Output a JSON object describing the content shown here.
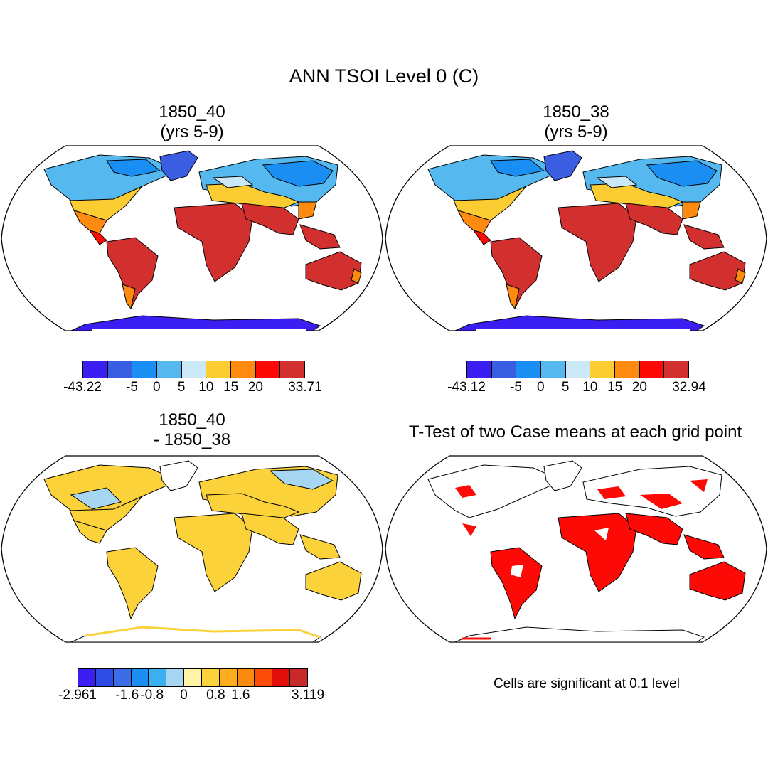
{
  "title": "ANN TSOI Level 0 (C)",
  "panels": [
    {
      "title_line1": "1850_40",
      "title_line2": "(yrs 5-9)"
    },
    {
      "title_line1": "1850_38",
      "title_line2": "(yrs 5-9)"
    },
    {
      "title_line1": "1850_40",
      "title_line2": "- 1850_38"
    },
    {
      "title_line1": "T-Test of two Case means at each grid point",
      "title_line2": ""
    }
  ],
  "colorbars": {
    "abs1": {
      "colors": [
        "#3b1ff2",
        "#3a5ee2",
        "#1a8ef2",
        "#55b9f0",
        "#cbe8f6",
        "#fccc33",
        "#fe8a10",
        "#fd0a06",
        "#d2302e"
      ],
      "labels": [
        "-43.22",
        "-5",
        "0",
        "5",
        "10",
        "15",
        "20",
        "33.71"
      ]
    },
    "abs2": {
      "colors": [
        "#3b1ff2",
        "#3a5ee2",
        "#1a8ef2",
        "#55b9f0",
        "#cbe8f6",
        "#fccc33",
        "#fe8a10",
        "#fd0a06",
        "#d2302e"
      ],
      "labels": [
        "-43.12",
        "-5",
        "0",
        "5",
        "10",
        "15",
        "20",
        "32.94"
      ]
    },
    "diff": {
      "colors": [
        "#3b1ff2",
        "#2f4be5",
        "#3b6ee6",
        "#1a8ef2",
        "#3ab0f0",
        "#a6d6f2",
        "#fff3a6",
        "#fcd23a",
        "#fcac1c",
        "#fc8a10",
        "#fb4c0a",
        "#e10e0a",
        "#c82a2a"
      ],
      "labels": [
        "-2.961",
        "-1.6",
        "-0.8",
        "0",
        "0.8",
        "1.6",
        "3.119"
      ]
    }
  },
  "ttest_note": "Cells are significant at 0.1 level"
}
